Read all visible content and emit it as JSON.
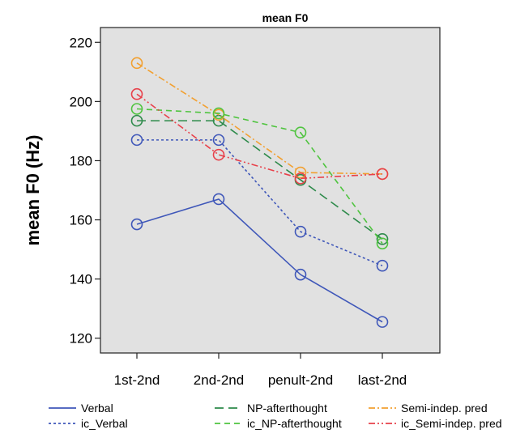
{
  "chart_data": {
    "type": "line",
    "title": "mean F0",
    "ylabel": "mean F0 (Hz)",
    "xlabel": "",
    "categories": [
      "1st-2nd",
      "2nd-2nd",
      "penult-2nd",
      "last-2nd"
    ],
    "ylim": [
      115,
      225
    ],
    "yticks": [
      120,
      140,
      160,
      180,
      200,
      220
    ],
    "grid": false,
    "legend_position": "bottom",
    "plot_background": "#e1e1e1",
    "series": [
      {
        "name": "Verbal",
        "color": "#3f57b9",
        "dash": "solid",
        "values": [
          158.5,
          167,
          141.5,
          125.5
        ]
      },
      {
        "name": "NP-afterthought",
        "color": "#2d8a4a",
        "dash": "longdash",
        "values": [
          193.5,
          193.5,
          173.5,
          153.5
        ]
      },
      {
        "name": "Semi-indep. pred",
        "color": "#f2a030",
        "dash": "dashdot",
        "values": [
          213,
          195.5,
          176,
          175.5
        ]
      },
      {
        "name": "ic_Verbal",
        "color": "#3f57b9",
        "dash": "dot",
        "values": [
          187,
          187,
          156,
          144.5
        ]
      },
      {
        "name": "ic_NP-afterthought",
        "color": "#4fc43f",
        "dash": "dash",
        "values": [
          197.5,
          196,
          189.5,
          152
        ]
      },
      {
        "name": "ic_Semi-indep. pred",
        "color": "#e8404a",
        "dash": "dashdotdot",
        "values": [
          202.5,
          182,
          174,
          175.5
        ]
      }
    ]
  }
}
